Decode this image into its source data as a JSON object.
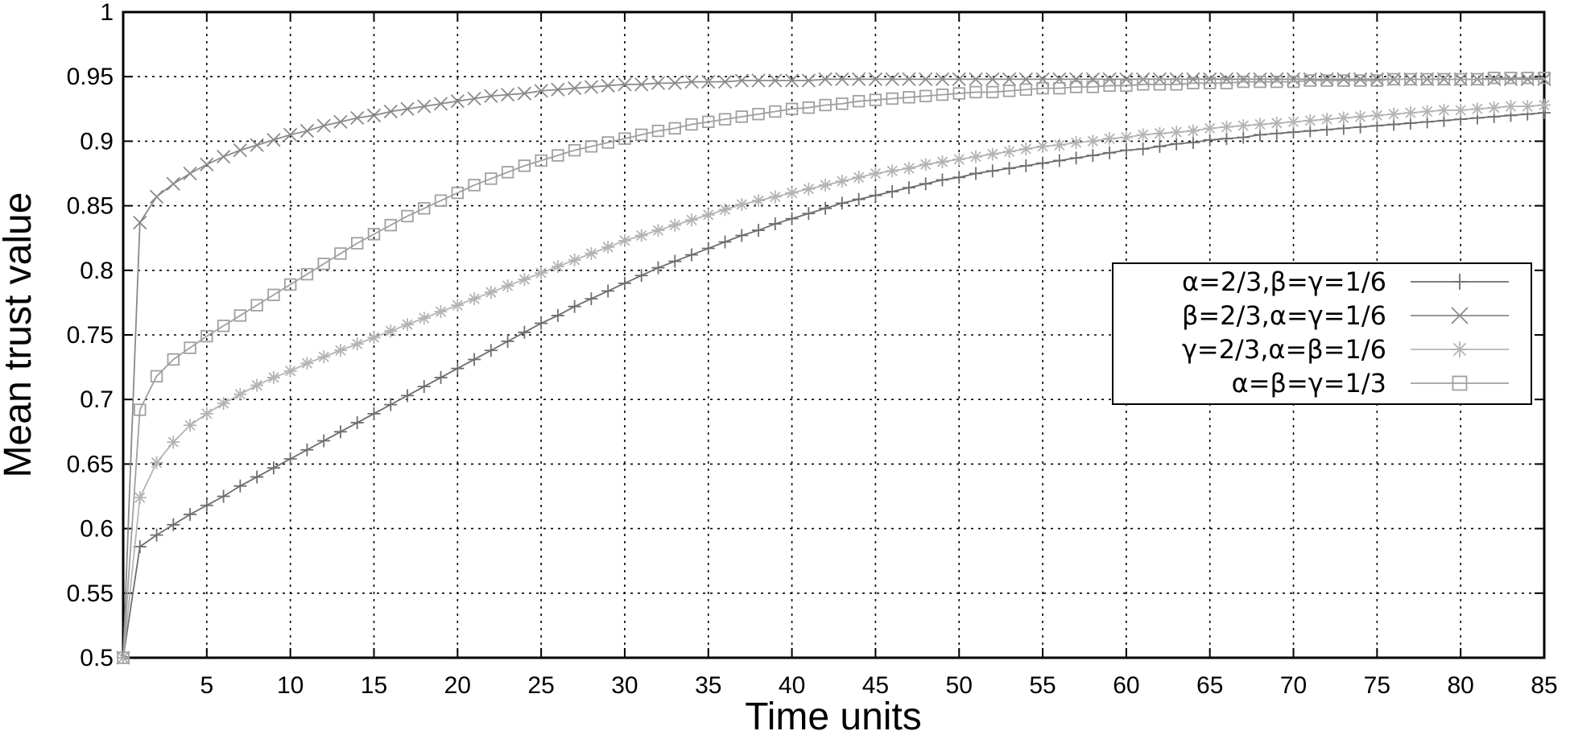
{
  "chart_data": {
    "type": "line",
    "title": "",
    "xlabel": "Time units",
    "ylabel": "Mean trust value",
    "xlim": [
      0,
      85
    ],
    "ylim": [
      0.5,
      1
    ],
    "x_ticks": [
      5,
      10,
      15,
      20,
      25,
      30,
      35,
      40,
      45,
      50,
      55,
      60,
      65,
      70,
      75,
      80,
      85
    ],
    "y_ticks": [
      0.5,
      0.55,
      0.6,
      0.65,
      0.7,
      0.75,
      0.8,
      0.85,
      0.9,
      0.95,
      1
    ],
    "grid": true,
    "legend_position": "center-right",
    "x": [
      0,
      1,
      2,
      3,
      4,
      5,
      6,
      7,
      8,
      9,
      10,
      11,
      12,
      13,
      14,
      15,
      16,
      17,
      18,
      19,
      20,
      21,
      22,
      23,
      24,
      25,
      26,
      27,
      28,
      29,
      30,
      31,
      32,
      33,
      34,
      35,
      36,
      37,
      38,
      39,
      40,
      41,
      42,
      43,
      44,
      45,
      46,
      47,
      48,
      49,
      50,
      51,
      52,
      53,
      54,
      55,
      56,
      57,
      58,
      59,
      60,
      61,
      62,
      63,
      64,
      65,
      66,
      67,
      68,
      69,
      70,
      71,
      72,
      73,
      74,
      75,
      76,
      77,
      78,
      79,
      80,
      81,
      82,
      83,
      84,
      85
    ],
    "series": [
      {
        "name": "α=2/3,β=γ=1/6",
        "marker": "plus",
        "color": "#6e6e6e",
        "values": [
          0.5,
          0.586,
          0.595,
          0.603,
          0.611,
          0.618,
          0.625,
          0.633,
          0.64,
          0.647,
          0.654,
          0.661,
          0.668,
          0.675,
          0.682,
          0.689,
          0.696,
          0.703,
          0.71,
          0.717,
          0.724,
          0.731,
          0.738,
          0.745,
          0.752,
          0.759,
          0.765,
          0.772,
          0.778,
          0.784,
          0.79,
          0.796,
          0.802,
          0.807,
          0.812,
          0.817,
          0.822,
          0.827,
          0.831,
          0.836,
          0.84,
          0.844,
          0.848,
          0.852,
          0.855,
          0.858,
          0.861,
          0.864,
          0.867,
          0.87,
          0.872,
          0.875,
          0.877,
          0.879,
          0.881,
          0.883,
          0.885,
          0.887,
          0.889,
          0.891,
          0.893,
          0.894,
          0.896,
          0.898,
          0.899,
          0.901,
          0.902,
          0.903,
          0.905,
          0.906,
          0.907,
          0.908,
          0.909,
          0.91,
          0.911,
          0.912,
          0.913,
          0.914,
          0.915,
          0.916,
          0.917,
          0.918,
          0.919,
          0.92,
          0.921,
          0.922
        ]
      },
      {
        "name": "β=2/3,α=γ=1/6",
        "marker": "x",
        "color": "#8a8a8a",
        "values": [
          0.5,
          0.837,
          0.857,
          0.867,
          0.875,
          0.882,
          0.888,
          0.893,
          0.897,
          0.901,
          0.905,
          0.908,
          0.912,
          0.915,
          0.918,
          0.92,
          0.923,
          0.925,
          0.927,
          0.929,
          0.931,
          0.933,
          0.935,
          0.936,
          0.937,
          0.939,
          0.94,
          0.941,
          0.942,
          0.943,
          0.944,
          0.944,
          0.945,
          0.945,
          0.946,
          0.946,
          0.946,
          0.947,
          0.947,
          0.947,
          0.947,
          0.947,
          0.948,
          0.948,
          0.948,
          0.948,
          0.948,
          0.948,
          0.948,
          0.948,
          0.948,
          0.948,
          0.948,
          0.948,
          0.948,
          0.948,
          0.948,
          0.948,
          0.948,
          0.948,
          0.948,
          0.948,
          0.948,
          0.948,
          0.948,
          0.948,
          0.948,
          0.948,
          0.948,
          0.948,
          0.948,
          0.948,
          0.948,
          0.948,
          0.948,
          0.948,
          0.948,
          0.948,
          0.948,
          0.948,
          0.948,
          0.948,
          0.948,
          0.948,
          0.948,
          0.948
        ]
      },
      {
        "name": "γ=2/3,α=β=1/6",
        "marker": "star",
        "color": "#b4b4b4",
        "values": [
          0.5,
          0.624,
          0.651,
          0.667,
          0.68,
          0.689,
          0.697,
          0.704,
          0.711,
          0.717,
          0.722,
          0.728,
          0.733,
          0.738,
          0.743,
          0.748,
          0.753,
          0.758,
          0.763,
          0.768,
          0.773,
          0.778,
          0.783,
          0.788,
          0.793,
          0.798,
          0.803,
          0.808,
          0.813,
          0.818,
          0.823,
          0.827,
          0.831,
          0.835,
          0.839,
          0.843,
          0.847,
          0.851,
          0.854,
          0.857,
          0.86,
          0.863,
          0.866,
          0.869,
          0.872,
          0.875,
          0.877,
          0.879,
          0.882,
          0.884,
          0.886,
          0.888,
          0.89,
          0.892,
          0.894,
          0.896,
          0.897,
          0.899,
          0.9,
          0.902,
          0.903,
          0.905,
          0.906,
          0.907,
          0.908,
          0.91,
          0.911,
          0.912,
          0.913,
          0.914,
          0.915,
          0.916,
          0.917,
          0.918,
          0.919,
          0.92,
          0.921,
          0.922,
          0.923,
          0.924,
          0.924,
          0.925,
          0.926,
          0.927,
          0.927,
          0.928
        ]
      },
      {
        "name": "α=β=γ=1/3",
        "marker": "square",
        "color": "#a0a0a0",
        "values": [
          0.5,
          0.692,
          0.718,
          0.731,
          0.74,
          0.749,
          0.757,
          0.765,
          0.773,
          0.781,
          0.789,
          0.797,
          0.805,
          0.813,
          0.821,
          0.828,
          0.835,
          0.842,
          0.848,
          0.854,
          0.86,
          0.866,
          0.871,
          0.876,
          0.881,
          0.885,
          0.889,
          0.893,
          0.896,
          0.899,
          0.902,
          0.905,
          0.908,
          0.91,
          0.913,
          0.915,
          0.917,
          0.919,
          0.921,
          0.923,
          0.925,
          0.926,
          0.928,
          0.929,
          0.931,
          0.932,
          0.933,
          0.934,
          0.935,
          0.936,
          0.937,
          0.938,
          0.938,
          0.939,
          0.94,
          0.941,
          0.941,
          0.942,
          0.942,
          0.943,
          0.943,
          0.944,
          0.944,
          0.944,
          0.945,
          0.945,
          0.945,
          0.946,
          0.946,
          0.946,
          0.946,
          0.947,
          0.947,
          0.947,
          0.947,
          0.947,
          0.948,
          0.948,
          0.948,
          0.948,
          0.948,
          0.948,
          0.949,
          0.949,
          0.949,
          0.949
        ]
      }
    ]
  }
}
